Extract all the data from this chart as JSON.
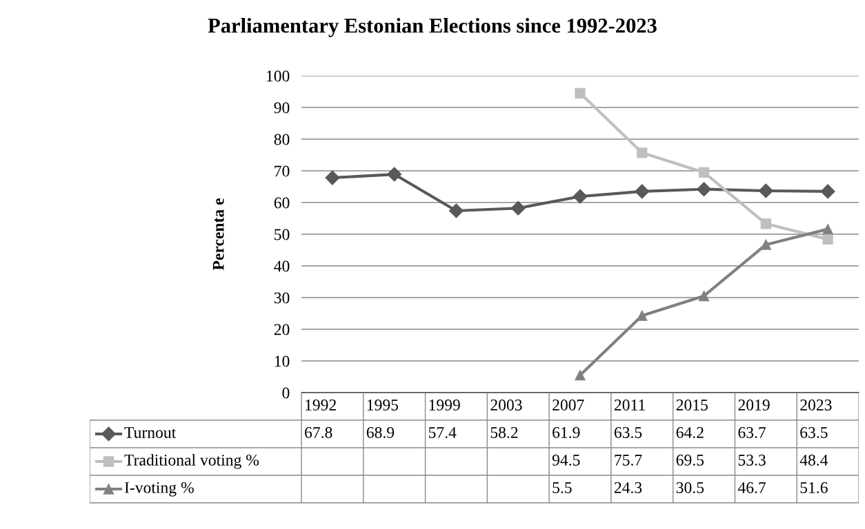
{
  "chart_data": {
    "type": "line",
    "title": "Parliamentary Estonian Elections since 1992-2023",
    "ylabel": "Percenta e",
    "categories": [
      "1992",
      "1995",
      "1999",
      "2003",
      "2007",
      "2011",
      "2015",
      "2019",
      "2023"
    ],
    "series": [
      {
        "name": "Turnout",
        "color": "#595959",
        "marker": "diamond",
        "values": [
          67.8,
          68.9,
          57.4,
          58.2,
          61.9,
          63.5,
          64.2,
          63.7,
          63.5
        ]
      },
      {
        "name": "Traditional voting %",
        "color": "#bfbfbf",
        "marker": "square",
        "values": [
          null,
          null,
          null,
          null,
          94.5,
          75.7,
          69.5,
          53.3,
          48.4
        ]
      },
      {
        "name": "I-voting %",
        "color": "#808080",
        "marker": "triangle",
        "values": [
          null,
          null,
          null,
          null,
          5.5,
          24.3,
          30.5,
          46.7,
          51.6
        ]
      }
    ],
    "ylim": [
      0,
      100
    ],
    "yticks": [
      0,
      10,
      20,
      30,
      40,
      50,
      60,
      70,
      80,
      90,
      100
    ],
    "grid": "y",
    "legend": "bottom",
    "data_labels": true,
    "line_style": "solid"
  }
}
